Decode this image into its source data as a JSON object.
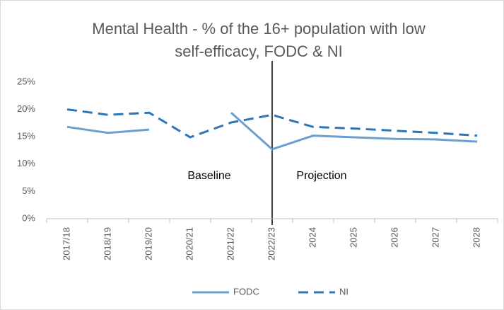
{
  "chart_data": {
    "type": "line",
    "title": [
      "Mental Health - % of the 16+ population with low",
      "self-efficacy, FODC & NI"
    ],
    "categories": [
      "2017/18",
      "2018/19",
      "2019/20",
      "2020/21",
      "2021/22",
      "2022/23",
      "2024",
      "2025",
      "2026",
      "2027",
      "2028"
    ],
    "series": [
      {
        "name": "FODC",
        "color": "#6a9fd0",
        "dash": false,
        "values": [
          16.8,
          15.7,
          16.3,
          null,
          19.4,
          12.7,
          15.2,
          14.9,
          14.6,
          14.5,
          14.1
        ]
      },
      {
        "name": "NI",
        "color": "#2e75b6",
        "dash": true,
        "values": [
          20.0,
          19.0,
          19.4,
          14.9,
          17.6,
          19.0,
          16.8,
          16.5,
          16.1,
          15.7,
          15.2
        ]
      }
    ],
    "ylim": [
      0,
      25
    ],
    "yticks": [
      {
        "value": 0,
        "label": "0%"
      },
      {
        "value": 5,
        "label": "5%"
      },
      {
        "value": 10,
        "label": "10%"
      },
      {
        "value": 15,
        "label": "15%"
      },
      {
        "value": 20,
        "label": "20%"
      },
      {
        "value": 25,
        "label": "25%"
      }
    ],
    "annotations": [
      "Baseline",
      "Projection"
    ],
    "grid": false,
    "legend": "bottom"
  }
}
